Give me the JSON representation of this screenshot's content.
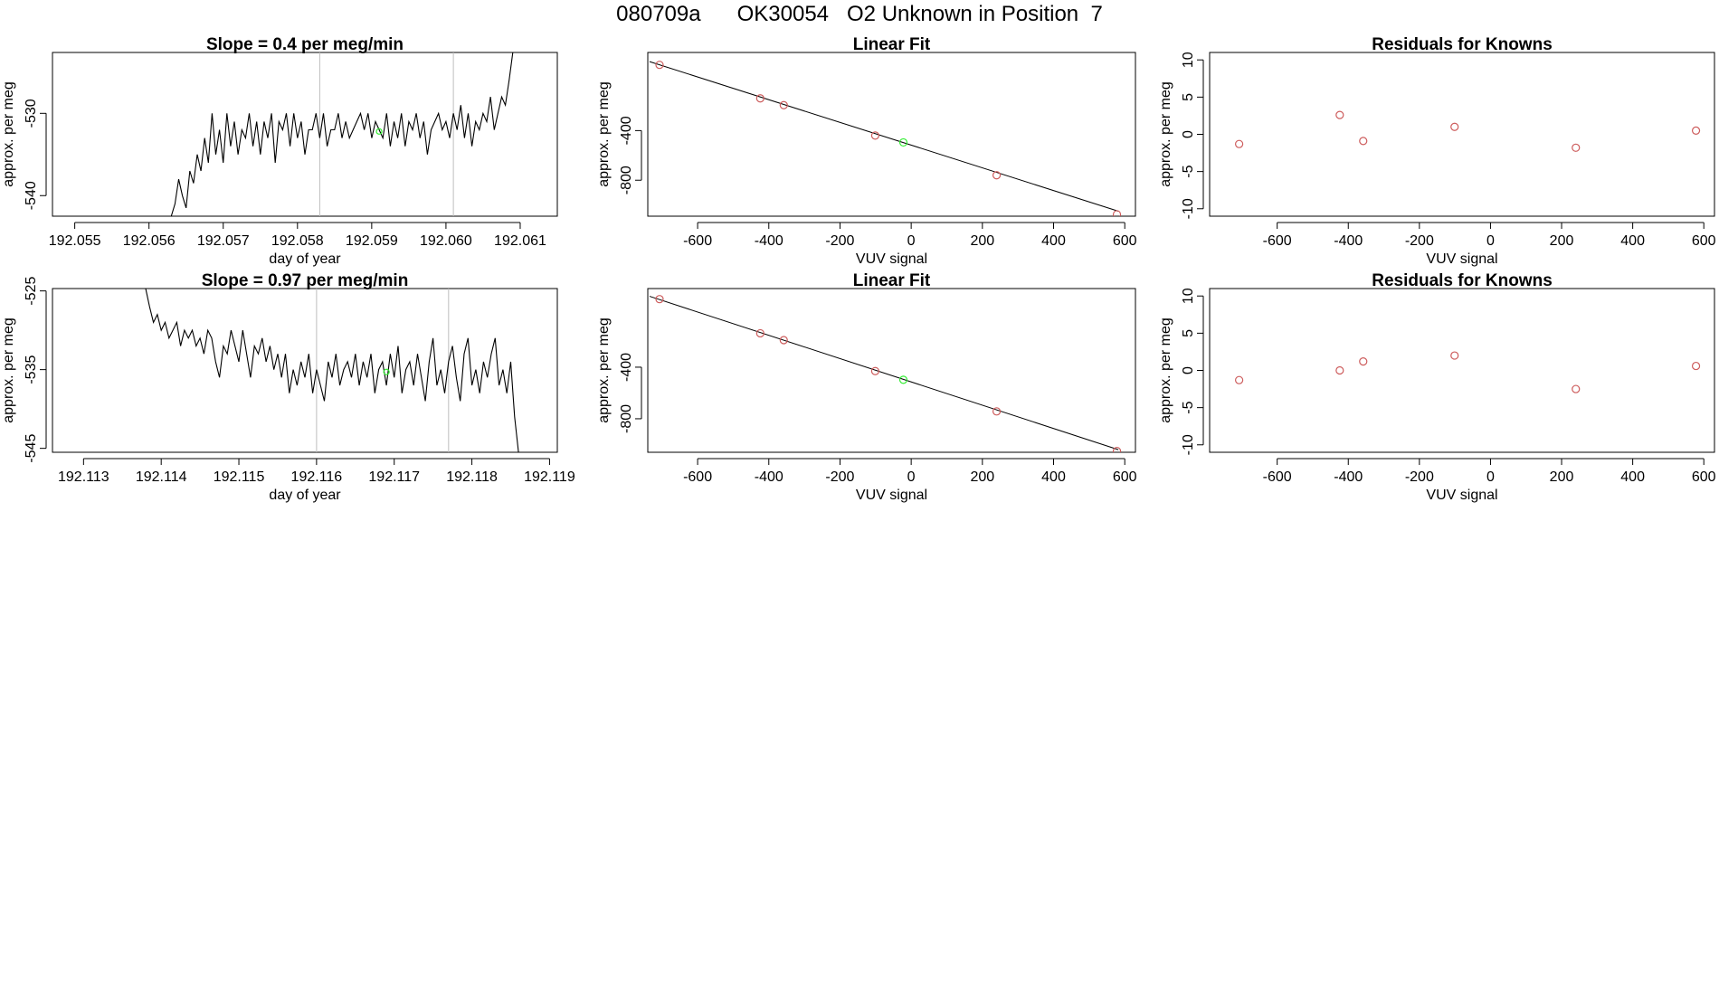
{
  "page_title": "080709a      OK30054   O2 Unknown in Position  7",
  "colors": {
    "line": "#000000",
    "known": "#cd5c5c",
    "unknown": "#33ee33",
    "vline": "#bebebe"
  },
  "chart_data": [
    {
      "id": "r1-drift",
      "type": "line",
      "title": "Slope =  0.4  per meg/min",
      "xlabel": "day of year",
      "ylabel": "approx. per meg",
      "xlim": [
        192.0547,
        192.0615
      ],
      "ylim": [
        -542.5,
        -522.6
      ],
      "xticks": [
        192.055,
        192.056,
        192.057,
        192.058,
        192.059,
        192.06,
        192.061
      ],
      "xtick_labels": [
        "192.055",
        "192.056",
        "192.057",
        "192.058",
        "192.059",
        "192.060",
        "192.061"
      ],
      "yticks": [
        -540,
        -530
      ],
      "ytick_labels": [
        "-540",
        "-530"
      ],
      "vlines": [
        192.0583,
        192.0601
      ],
      "unknown_point": {
        "x": 192.0591,
        "y": -532.2
      },
      "x": [
        192.0563,
        192.05635,
        192.0564,
        192.05645,
        192.0565,
        192.05655,
        192.0566,
        192.05665,
        192.0567,
        192.05675,
        192.0568,
        192.05685,
        192.0569,
        192.05695,
        192.057,
        192.05705,
        192.0571,
        192.05715,
        192.0572,
        192.05725,
        192.0573,
        192.05735,
        192.0574,
        192.05745,
        192.0575,
        192.05755,
        192.0576,
        192.05765,
        192.0577,
        192.05775,
        192.0578,
        192.05785,
        192.0579,
        192.05795,
        192.058,
        192.05805,
        192.0581,
        192.05815,
        192.0582,
        192.05825,
        192.0583,
        192.05835,
        192.0584,
        192.05845,
        192.0585,
        192.05855,
        192.0586,
        192.05865,
        192.0587,
        192.05875,
        192.0588,
        192.05885,
        192.0589,
        192.05895,
        192.059,
        192.05905,
        192.0591,
        192.05915,
        192.0592,
        192.05925,
        192.0593,
        192.05935,
        192.0594,
        192.05945,
        192.0595,
        192.05955,
        192.0596,
        192.05965,
        192.0597,
        192.05975,
        192.0598,
        192.05985,
        192.0599,
        192.05995,
        192.06,
        192.06005,
        192.0601,
        192.06015,
        192.0602,
        192.06025,
        192.0603,
        192.06035,
        192.0604,
        192.06045,
        192.0605,
        192.06055,
        192.0606,
        192.06065,
        192.0607,
        192.06075,
        192.0608,
        192.06085,
        192.0609
      ],
      "y": [
        -542.5,
        -541,
        -538,
        -540,
        -541.5,
        -537,
        -538.5,
        -535,
        -537,
        -533,
        -536,
        -530,
        -535,
        -532,
        -536,
        -530,
        -534,
        -531,
        -535,
        -532,
        -533,
        -530,
        -534,
        -531,
        -535,
        -531,
        -533,
        -530,
        -536,
        -531,
        -532,
        -530,
        -534,
        -530,
        -533,
        -531,
        -535,
        -532,
        -532,
        -530,
        -533,
        -530,
        -534,
        -532,
        -532,
        -530,
        -533,
        -531,
        -533,
        -532,
        -531,
        -530,
        -532,
        -530,
        -533,
        -531,
        -532,
        -533,
        -530,
        -534,
        -531,
        -533,
        -530,
        -534,
        -531,
        -532,
        -530,
        -533,
        -531,
        -535,
        -532,
        -531,
        -530,
        -532,
        -531,
        -533,
        -530,
        -532,
        -529,
        -533,
        -530,
        -534,
        -531,
        -532,
        -530,
        -531,
        -528,
        -532,
        -530,
        -528,
        -529,
        -526,
        -522.6
      ]
    },
    {
      "id": "r1-fit",
      "type": "scatter",
      "title": "Linear Fit",
      "xlabel": "VUV signal",
      "ylabel": "approx. per meg",
      "xlim": [
        -740,
        630
      ],
      "ylim": [
        -1090,
        230
      ],
      "xticks": [
        -600,
        -400,
        -200,
        0,
        200,
        400,
        600
      ],
      "xtick_labels": [
        "-600",
        "-400",
        "-200",
        "0",
        "200",
        "400",
        "600"
      ],
      "yticks": [
        -800,
        -400
      ],
      "ytick_labels": [
        "-800",
        "-400"
      ],
      "fit_line": {
        "x": [
          -735,
          582
        ],
        "y": [
          156,
          -1050
        ]
      },
      "known": {
        "x": [
          -707,
          -424,
          -358,
          -101,
          240,
          578
        ],
        "y": [
          130,
          -140,
          -195,
          -440,
          -760,
          -1075
        ]
      },
      "unknown": {
        "x": [
          -22
        ],
        "y": [
          -495
        ]
      }
    },
    {
      "id": "r1-resid",
      "type": "scatter",
      "title": "Residuals for Knowns",
      "xlabel": "VUV signal",
      "ylabel": "approx. per meg",
      "xlim": [
        -790,
        630
      ],
      "ylim": [
        -11,
        11
      ],
      "xticks": [
        -600,
        -400,
        -200,
        0,
        200,
        400,
        600
      ],
      "xtick_labels": [
        "-600",
        "-400",
        "-200",
        "0",
        "200",
        "400",
        "600"
      ],
      "yticks": [
        -10,
        -5,
        0,
        5,
        10
      ],
      "ytick_labels": [
        "-10",
        "-5",
        "0",
        "5",
        "10"
      ],
      "known": {
        "x": [
          -707,
          -424,
          -358,
          -101,
          240,
          578
        ],
        "y": [
          -1.3,
          2.6,
          -0.9,
          1.0,
          -1.8,
          0.5
        ]
      }
    },
    {
      "id": "r2-drift",
      "type": "line",
      "title": "Slope =  0.97  per meg/min",
      "xlabel": "day of year",
      "ylabel": "approx. per meg",
      "xlim": [
        192.1126,
        192.1191
      ],
      "ylim": [
        -545.5,
        -524.7
      ],
      "xticks": [
        192.113,
        192.114,
        192.115,
        192.116,
        192.117,
        192.118,
        192.119
      ],
      "xtick_labels": [
        "192.113",
        "192.114",
        "192.115",
        "192.116",
        "192.117",
        "192.118",
        "192.119"
      ],
      "yticks": [
        -545,
        -535,
        -525
      ],
      "ytick_labels": [
        "-545",
        "-535",
        "-525"
      ],
      "vlines": [
        192.116,
        192.1177
      ],
      "unknown_point": {
        "x": 192.1169,
        "y": -535.3
      },
      "x": [
        192.1138,
        192.11385,
        192.1139,
        192.11395,
        192.114,
        192.11405,
        192.1141,
        192.11415,
        192.1142,
        192.11425,
        192.1143,
        192.11435,
        192.1144,
        192.11445,
        192.1145,
        192.11455,
        192.1146,
        192.11465,
        192.1147,
        192.11475,
        192.1148,
        192.11485,
        192.1149,
        192.11495,
        192.115,
        192.11505,
        192.1151,
        192.11515,
        192.1152,
        192.11525,
        192.1153,
        192.11535,
        192.1154,
        192.11545,
        192.1155,
        192.11555,
        192.1156,
        192.11565,
        192.1157,
        192.11575,
        192.1158,
        192.11585,
        192.1159,
        192.11595,
        192.116,
        192.11605,
        192.1161,
        192.11615,
        192.1162,
        192.11625,
        192.1163,
        192.11635,
        192.1164,
        192.11645,
        192.1165,
        192.11655,
        192.1166,
        192.11665,
        192.1167,
        192.11675,
        192.1168,
        192.11685,
        192.1169,
        192.11695,
        192.117,
        192.11705,
        192.1171,
        192.11715,
        192.1172,
        192.11725,
        192.1173,
        192.11735,
        192.1174,
        192.11745,
        192.1175,
        192.11755,
        192.1176,
        192.11765,
        192.1177,
        192.11775,
        192.1178,
        192.11785,
        192.1179,
        192.11795,
        192.118,
        192.11805,
        192.1181,
        192.11815,
        192.1182,
        192.11825,
        192.1183,
        192.11835,
        192.1184,
        192.11845,
        192.1185,
        192.11855,
        192.1186
      ],
      "y": [
        -524.7,
        -527,
        -529,
        -528,
        -530,
        -529,
        -531,
        -530,
        -529,
        -532,
        -530,
        -531,
        -530,
        -532,
        -531,
        -533,
        -530,
        -531,
        -534,
        -536,
        -532,
        -533,
        -530,
        -532,
        -534,
        -530,
        -533,
        -536,
        -532,
        -533,
        -531,
        -534,
        -532,
        -535,
        -533,
        -536,
        -533,
        -538,
        -535,
        -537,
        -534,
        -536,
        -533,
        -538,
        -535,
        -537,
        -539,
        -534,
        -536,
        -533,
        -537,
        -535,
        -534,
        -536,
        -533,
        -537,
        -534,
        -536,
        -533,
        -538,
        -535,
        -534,
        -537,
        -533,
        -536,
        -532,
        -538,
        -535,
        -534,
        -537,
        -533,
        -536,
        -539,
        -534,
        -531,
        -537,
        -535,
        -538,
        -534,
        -532,
        -536,
        -539,
        -533,
        -531,
        -537,
        -535,
        -538,
        -534,
        -536,
        -533,
        -531,
        -537,
        -535,
        -538,
        -534,
        -541,
        -545.5
      ]
    },
    {
      "id": "r2-fit",
      "type": "scatter",
      "title": "Linear Fit",
      "xlabel": "VUV signal",
      "ylabel": "approx. per meg",
      "xlim": [
        -740,
        630
      ],
      "ylim": [
        -1060,
        210
      ],
      "xticks": [
        -600,
        -400,
        -200,
        0,
        200,
        400,
        600
      ],
      "xtick_labels": [
        "-600",
        "-400",
        "-200",
        "0",
        "200",
        "400",
        "600"
      ],
      "yticks": [
        -800,
        -400
      ],
      "ytick_labels": [
        "-800",
        "-400"
      ],
      "fit_line": {
        "x": [
          -735,
          582
        ],
        "y": [
          150,
          -1040
        ]
      },
      "known": {
        "x": [
          -707,
          -424,
          -358,
          -101,
          240,
          578
        ],
        "y": [
          128,
          -137,
          -190,
          -430,
          -743,
          -1050
        ]
      },
      "unknown": {
        "x": [
          -22
        ],
        "y": [
          -498
        ]
      }
    },
    {
      "id": "r2-resid",
      "type": "scatter",
      "title": "Residuals for Knowns",
      "xlabel": "VUV signal",
      "ylabel": "approx. per meg",
      "xlim": [
        -790,
        630
      ],
      "ylim": [
        -11,
        11
      ],
      "xticks": [
        -600,
        -400,
        -200,
        0,
        200,
        400,
        600
      ],
      "xtick_labels": [
        "-600",
        "-400",
        "-200",
        "0",
        "200",
        "400",
        "600"
      ],
      "yticks": [
        -10,
        -5,
        0,
        5,
        10
      ],
      "ytick_labels": [
        "-10",
        "-5",
        "0",
        "5",
        "10"
      ],
      "known": {
        "x": [
          -707,
          -424,
          -358,
          -101,
          240,
          578
        ],
        "y": [
          -1.3,
          0.0,
          1.2,
          2.0,
          -2.5,
          0.6
        ]
      }
    }
  ]
}
